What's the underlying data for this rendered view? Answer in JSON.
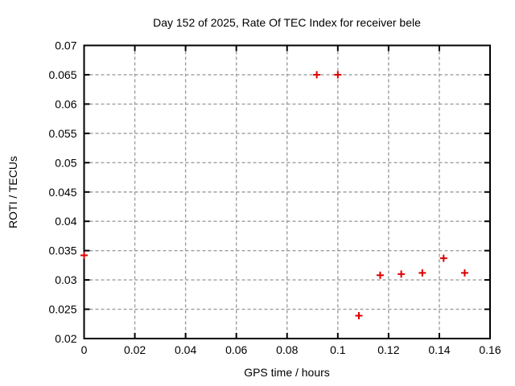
{
  "window": {
    "background_color": "#ffffff"
  },
  "chart_data": {
    "type": "scatter",
    "title": "Day 152 of 2025, Rate Of TEC Index for receiver bele",
    "xlabel": "GPS time / hours",
    "ylabel": "ROTI / TECUs",
    "xlim": [
      0,
      0.16
    ],
    "ylim": [
      0.02,
      0.07
    ],
    "xticks": {
      "values": [
        0,
        0.02,
        0.04,
        0.06,
        0.08,
        0.1,
        0.12,
        0.14,
        0.16
      ],
      "labels": [
        "0",
        "0.02",
        "0.04",
        "0.06",
        "0.08",
        "0.1",
        "0.12",
        "0.14",
        "0.16"
      ]
    },
    "yticks": {
      "values": [
        0.02,
        0.025,
        0.03,
        0.035,
        0.04,
        0.045,
        0.05,
        0.055,
        0.06,
        0.065,
        0.07
      ],
      "labels": [
        "0.02",
        "0.025",
        "0.03",
        "0.035",
        "0.04",
        "0.045",
        "0.05",
        "0.055",
        "0.06",
        "0.065",
        "0.07"
      ]
    },
    "grid": {
      "visible": true,
      "style": "dashed",
      "color": "#9e9e9e"
    },
    "legend_position": "none",
    "axis_color": "#000000",
    "series": [
      {
        "name": "ROTI",
        "marker": "plus",
        "color": "#dd0000",
        "points": [
          [
            0,
            0.0342
          ],
          [
            0.0917,
            0.065
          ],
          [
            0.1,
            0.065
          ],
          [
            0.1083,
            0.0239
          ],
          [
            0.1167,
            0.0308
          ],
          [
            0.125,
            0.031
          ],
          [
            0.1333,
            0.0312
          ],
          [
            0.1417,
            0.0337
          ],
          [
            0.15,
            0.0312
          ]
        ]
      }
    ]
  }
}
